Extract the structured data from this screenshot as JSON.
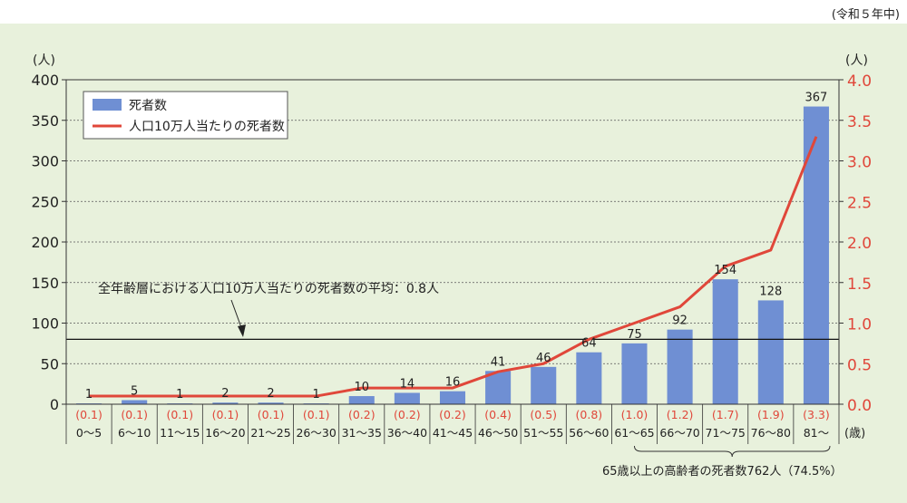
{
  "period_note": "(令和５年中)",
  "senior_note": "65歳以上の高齢者の死者数762人（74.5%）",
  "average_note": "全年齢層における人口10万人当たりの死者数の平均：0.8人",
  "colors": {
    "bar": "#6f8fd3",
    "line": "#e0473a",
    "right_axis": "#e0473a",
    "panel_bg": "#e8f1dc"
  },
  "chart_data": {
    "type": "bar",
    "categories": [
      "0～5",
      "6～10",
      "11～15",
      "16～20",
      "21～25",
      "26～30",
      "31～35",
      "36～40",
      "41～45",
      "46～50",
      "51～55",
      "56～60",
      "61～65",
      "66～70",
      "71～75",
      "76～80",
      "81～"
    ],
    "x_unit": "(歳)",
    "series": [
      {
        "name": "死者数",
        "type": "bar",
        "axis": "left",
        "values": [
          1,
          5,
          1,
          2,
          2,
          1,
          10,
          14,
          16,
          41,
          46,
          64,
          75,
          92,
          154,
          128,
          367
        ],
        "labels": [
          "1",
          "5",
          "1",
          "2",
          "2",
          "1",
          "10",
          "14",
          "16",
          "41",
          "46",
          "64",
          "75",
          "92",
          "154",
          "128",
          "367"
        ]
      },
      {
        "name": "人口10万人当たりの死者数",
        "type": "line",
        "axis": "right",
        "values": [
          0.1,
          0.1,
          0.1,
          0.1,
          0.1,
          0.1,
          0.2,
          0.2,
          0.2,
          0.4,
          0.5,
          0.8,
          1.0,
          1.2,
          1.7,
          1.9,
          3.3
        ],
        "labels": [
          "(0.1)",
          "(0.1)",
          "(0.1)",
          "(0.1)",
          "(0.1)",
          "(0.1)",
          "(0.2)",
          "(0.2)",
          "(0.2)",
          "(0.4)",
          "(0.5)",
          "(0.8)",
          "(1.0)",
          "(1.2)",
          "(1.7)",
          "(1.9)",
          "(3.3)"
        ]
      }
    ],
    "y_left": {
      "unit": "(人)",
      "range": [
        0,
        400
      ],
      "ticks": [
        "0",
        "50",
        "100",
        "150",
        "200",
        "250",
        "300",
        "350",
        "400"
      ]
    },
    "y_right": {
      "unit": "(人)",
      "range": [
        0,
        4.0
      ],
      "ticks": [
        "0.0",
        "0.5",
        "1.0",
        "1.5",
        "2.0",
        "2.5",
        "3.0",
        "3.5",
        "4.0"
      ]
    },
    "average_line_value": 0.8,
    "grid": true,
    "legend_position": "top-left"
  }
}
